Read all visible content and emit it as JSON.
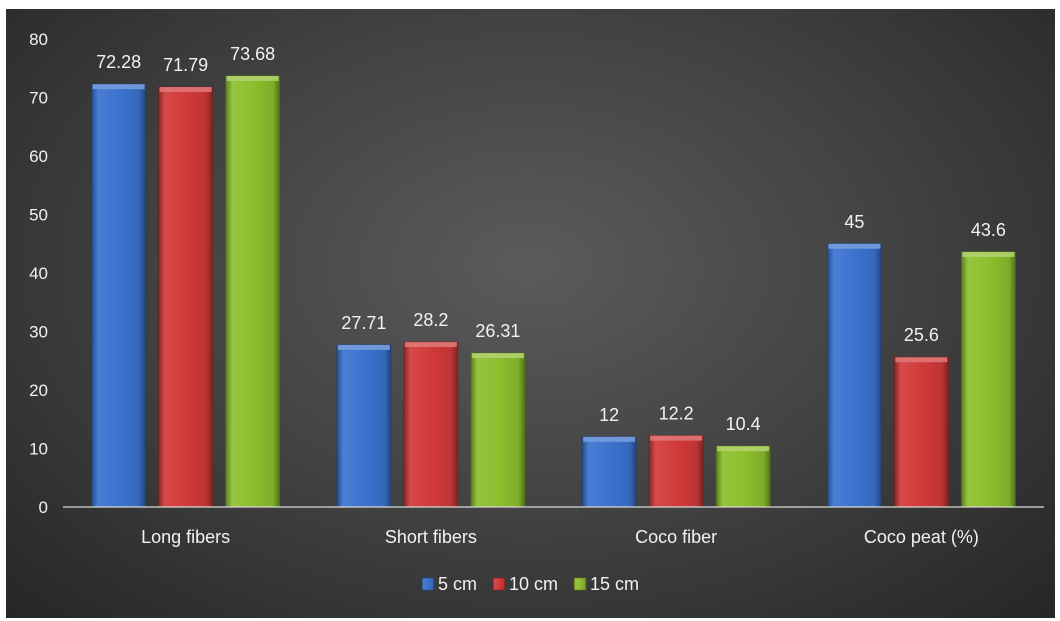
{
  "chart_data": {
    "type": "bar",
    "title": "",
    "xlabel": "",
    "ylabel": "",
    "categories": [
      "Long fibers",
      "Short fibers",
      "Coco fiber",
      "Coco peat (%)"
    ],
    "series": [
      {
        "name": "5 cm",
        "values": [
          72.28,
          27.71,
          12,
          45
        ],
        "labels": [
          "72.28",
          "27.71",
          "12",
          "45"
        ],
        "color": "#3b73d0"
      },
      {
        "name": "10 cm",
        "values": [
          71.79,
          28.2,
          12.2,
          25.6
        ],
        "labels": [
          "71.79",
          "28.2",
          "12.2",
          "25.6"
        ],
        "color": "#d23a3a"
      },
      {
        "name": "15 cm",
        "values": [
          73.68,
          26.31,
          10.4,
          43.6
        ],
        "labels": [
          "73.68",
          "26.31",
          "10.4",
          "43.6"
        ],
        "color": "#8dbf2e"
      }
    ],
    "ylim": [
      0,
      80
    ],
    "yticks": [
      "0",
      "10",
      "20",
      "30",
      "40",
      "50",
      "60",
      "70",
      "80"
    ],
    "grid": false,
    "legend": "bottom",
    "background": "#404040",
    "text_color": "#f2f2f2"
  }
}
